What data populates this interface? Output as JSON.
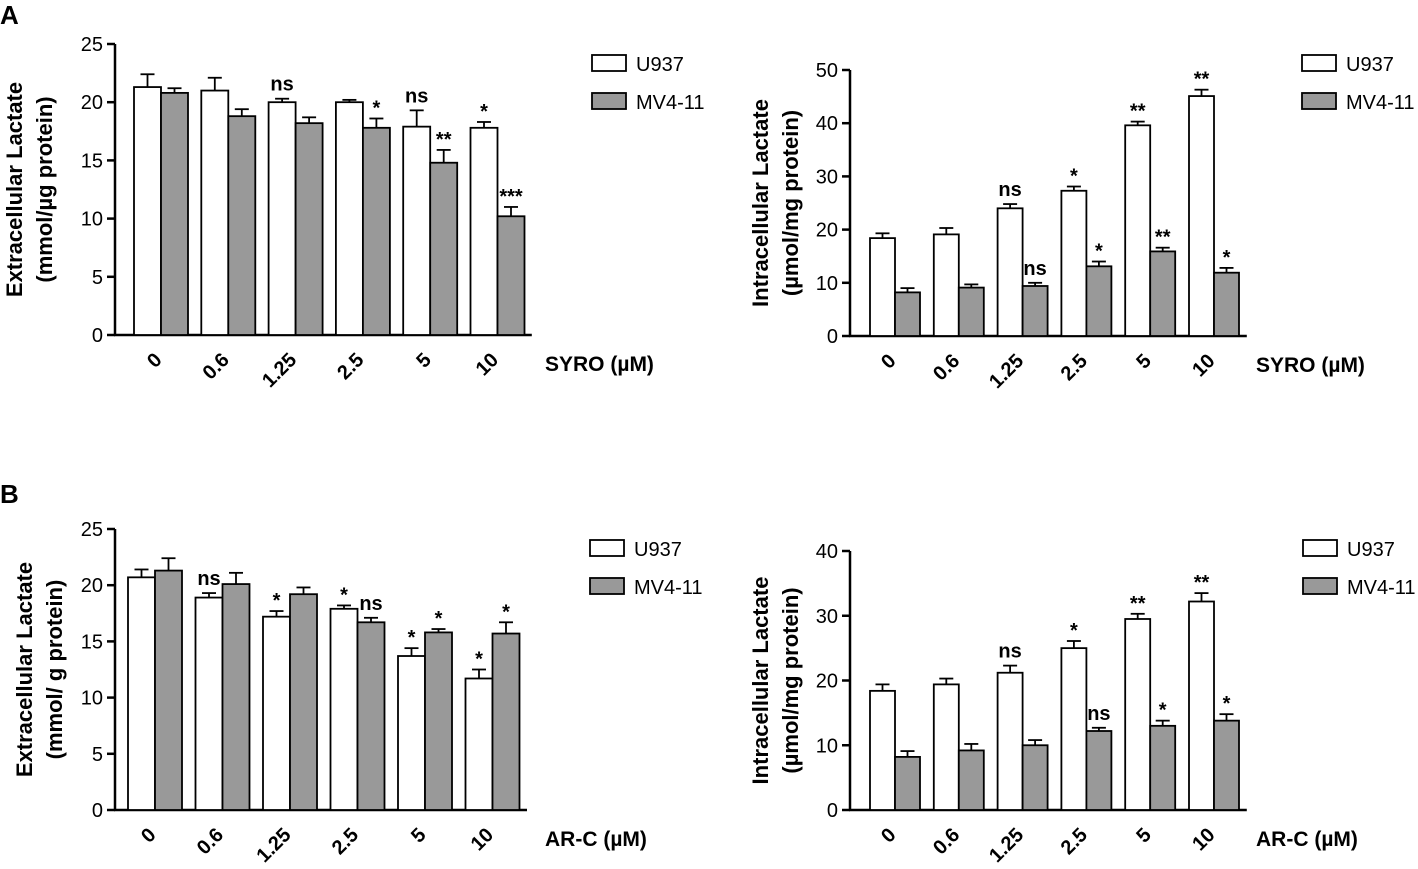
{
  "panel_labels": [
    "A",
    "B"
  ],
  "colors": {
    "u937": "#ffffff",
    "mv411": "#999999",
    "stroke": "#000000"
  },
  "chart_data": [
    {
      "type": "bar",
      "panel": "A",
      "ylabel_line1": "Extracellular Lactate",
      "ylabel_line2": "(mmol/µg protein)",
      "xlabel": "SYRO (µM)",
      "categories": [
        "0",
        "0.6",
        "1.25",
        "2.5",
        "5",
        "10"
      ],
      "ylim": [
        0,
        25
      ],
      "yticks": [
        0,
        5,
        10,
        15,
        20,
        25
      ],
      "series": [
        {
          "name": "U937",
          "values": [
            21.3,
            21.0,
            20.0,
            20.0,
            17.9,
            17.8
          ],
          "errors": [
            1.1,
            1.1,
            0.3,
            0.2,
            1.4,
            0.5
          ],
          "annotations": [
            "",
            "",
            "ns",
            "",
            "ns",
            "*"
          ]
        },
        {
          "name": "MV4-11",
          "values": [
            20.8,
            18.8,
            18.2,
            17.8,
            14.8,
            10.2
          ],
          "errors": [
            0.4,
            0.6,
            0.5,
            0.8,
            1.1,
            0.8
          ],
          "annotations": [
            "",
            "",
            "",
            "*",
            "**",
            "***"
          ]
        }
      ]
    },
    {
      "type": "bar",
      "panel": "A",
      "ylabel_line1": "Intracellular Lactate",
      "ylabel_line2": "(µmol/mg protein)",
      "xlabel": "SYRO (µM)",
      "categories": [
        "0",
        "0.6",
        "1.25",
        "2.5",
        "5",
        "10"
      ],
      "ylim": [
        0,
        50
      ],
      "yticks": [
        0,
        10,
        20,
        30,
        40,
        50
      ],
      "series": [
        {
          "name": "U937",
          "values": [
            18.4,
            19.1,
            24.0,
            27.3,
            39.6,
            45.1
          ],
          "errors": [
            0.9,
            1.2,
            0.8,
            0.8,
            0.7,
            1.2
          ],
          "annotations": [
            "",
            "",
            "ns",
            "*",
            "**",
            "**"
          ]
        },
        {
          "name": "MV4-11",
          "values": [
            8.2,
            9.1,
            9.4,
            13.1,
            15.9,
            11.9
          ],
          "errors": [
            0.8,
            0.6,
            0.6,
            0.9,
            0.7,
            0.9
          ],
          "annotations": [
            "",
            "",
            "ns",
            "*",
            "**",
            "*"
          ]
        }
      ]
    },
    {
      "type": "bar",
      "panel": "B",
      "ylabel_line1": "Extracellular Lactate",
      "ylabel_line2": "(mmol/   g protein)",
      "xlabel": "AR-C (µM)",
      "categories": [
        "0",
        "0.6",
        "1.25",
        "2.5",
        "5",
        "10"
      ],
      "ylim": [
        0,
        25
      ],
      "yticks": [
        0,
        5,
        10,
        15,
        20,
        25
      ],
      "series": [
        {
          "name": "U937",
          "values": [
            20.7,
            18.9,
            17.2,
            17.9,
            13.7,
            11.7
          ],
          "errors": [
            0.7,
            0.4,
            0.5,
            0.3,
            0.7,
            0.8
          ],
          "annotations": [
            "",
            "ns",
            "*",
            "*",
            "*",
            "*"
          ]
        },
        {
          "name": "MV4-11",
          "values": [
            21.3,
            20.1,
            19.2,
            16.7,
            15.8,
            15.7
          ],
          "errors": [
            1.1,
            1.0,
            0.6,
            0.4,
            0.3,
            1.0
          ],
          "annotations": [
            "",
            "",
            "",
            "ns",
            "*",
            "*"
          ]
        }
      ]
    },
    {
      "type": "bar",
      "panel": "B",
      "ylabel_line1": "Intracellular Lactate",
      "ylabel_line2": "(µmol/mg protein)",
      "xlabel": "AR-C (µM)",
      "categories": [
        "0",
        "0.6",
        "1.25",
        "2.5",
        "5",
        "10"
      ],
      "ylim": [
        0,
        40
      ],
      "yticks": [
        0,
        10,
        20,
        30,
        40
      ],
      "series": [
        {
          "name": "U937",
          "values": [
            18.4,
            19.4,
            21.2,
            25.0,
            29.5,
            32.2
          ],
          "errors": [
            1.0,
            0.9,
            1.1,
            1.1,
            0.8,
            1.3
          ],
          "annotations": [
            "",
            "",
            "ns",
            "*",
            "**",
            "**"
          ]
        },
        {
          "name": "MV4-11",
          "values": [
            8.2,
            9.2,
            10.0,
            12.2,
            13.0,
            13.8
          ],
          "errors": [
            0.9,
            1.0,
            0.8,
            0.5,
            0.8,
            1.0
          ],
          "annotations": [
            "",
            "",
            "",
            "ns",
            "*",
            "*"
          ]
        }
      ]
    }
  ]
}
